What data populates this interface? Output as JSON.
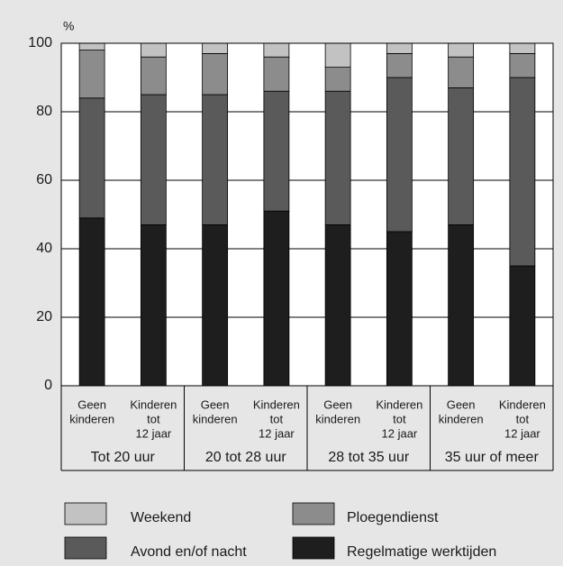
{
  "chart_data": {
    "type": "stacked_bar",
    "y_label": "%",
    "categories": [
      [
        "Geen",
        "kinderen"
      ],
      [
        "Kinderen",
        "tot",
        "12 jaar"
      ],
      [
        "Geen",
        "kinderen"
      ],
      [
        "Kinderen",
        "tot",
        "12 jaar"
      ],
      [
        "Geen",
        "kinderen"
      ],
      [
        "Kinderen",
        "tot",
        "12 jaar"
      ],
      [
        "Geen",
        "kinderen"
      ],
      [
        "Kinderen",
        "tot",
        "12 jaar"
      ]
    ],
    "groups": [
      "Tot 20 uur",
      "20 tot 28 uur",
      "28 tot 35 uur",
      "35 uur of meer"
    ],
    "series": [
      {
        "name": "Regelmatige werktijden",
        "color": "#1e1e1e",
        "values": [
          49,
          47,
          47,
          51,
          47,
          45,
          47,
          35
        ]
      },
      {
        "name": "Avond en/of nacht",
        "color": "#5a5a5a",
        "values": [
          35,
          38,
          38,
          35,
          39,
          45,
          40,
          55
        ]
      },
      {
        "name": "Ploegendienst",
        "color": "#8c8c8c",
        "values": [
          14,
          11,
          12,
          10,
          7,
          7,
          9,
          7
        ]
      },
      {
        "name": "Weekend",
        "color": "#c2c2c2",
        "values": [
          2,
          4,
          3,
          4,
          7,
          3,
          4,
          3
        ]
      }
    ],
    "ylim": [
      0,
      100
    ],
    "yticks": [
      0,
      20,
      40,
      60,
      80,
      100
    ],
    "grid": true
  }
}
